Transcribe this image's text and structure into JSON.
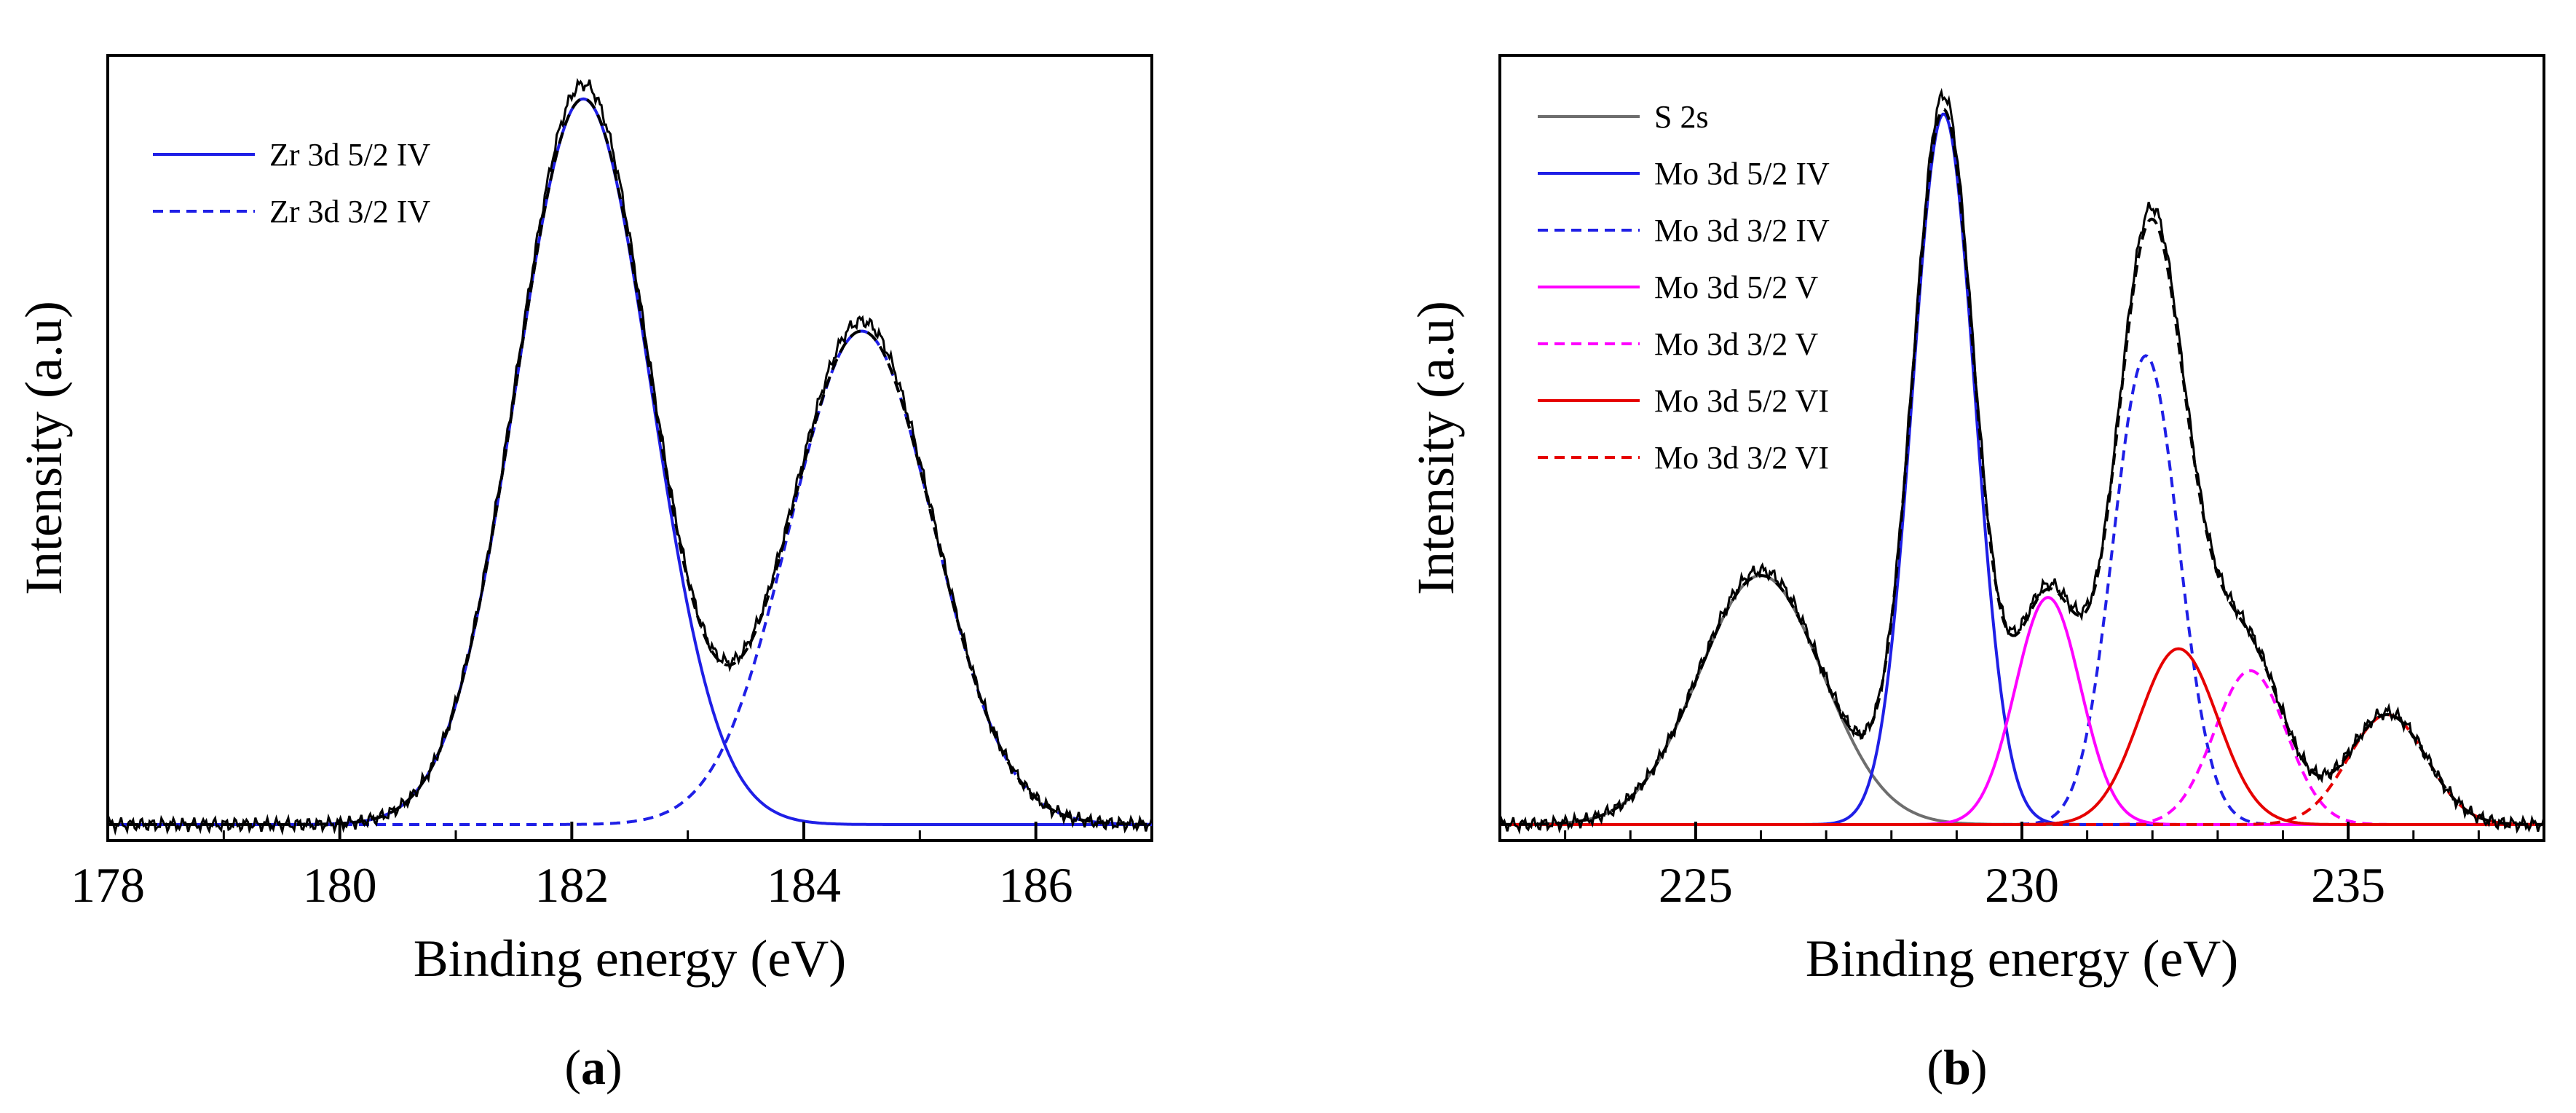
{
  "chart_data": [
    {
      "type": "line",
      "panel_label": "(a)",
      "panel_letter": "a",
      "xlabel": "Binding energy (eV)",
      "ylabel": "Intensity (a.u)",
      "xlim": [
        178,
        187
      ],
      "ylim": [
        0,
        1.06
      ],
      "x_ticks": [
        178,
        180,
        182,
        184,
        186
      ],
      "x_minor_step": 1,
      "legend_position": "top-left",
      "colors": {
        "blue": "#1f1fe6",
        "black": "#000000"
      },
      "components": [
        {
          "name": "Zr 3d 5/2 IV",
          "color": "#1f1fe6",
          "style": "solid",
          "center": 182.1,
          "amplitude": 1.0,
          "sigma": 0.58,
          "show_in_legend": true
        },
        {
          "name": "Zr 3d 3/2 IV",
          "color": "#1f1fe6",
          "style": "dashed",
          "center": 184.5,
          "amplitude": 0.68,
          "sigma": 0.62,
          "show_in_legend": true
        }
      ],
      "envelope": {
        "name": "Fit envelope",
        "color": "#000000",
        "style": "dashed"
      },
      "experimental": {
        "name": "Experimental",
        "color": "#000000",
        "style": "solid"
      },
      "baseline": 0.0
    },
    {
      "type": "line",
      "panel_label": "(b)",
      "panel_letter": "b",
      "xlabel": "Binding energy (eV)",
      "ylabel": "Intensity (a.u)",
      "xlim": [
        222,
        238
      ],
      "ylim": [
        0,
        1.05
      ],
      "x_ticks": [
        225,
        230,
        235
      ],
      "x_minor_step": 1,
      "legend_position": "top-left",
      "colors": {
        "gray": "#6e6e6e",
        "blue": "#1f1fe6",
        "magenta": "#ff00ff",
        "red": "#e60000",
        "black": "#000000"
      },
      "components": [
        {
          "name": "S 2s",
          "color": "#6e6e6e",
          "style": "solid",
          "center": 226.0,
          "amplitude": 0.34,
          "sigma": 0.95,
          "show_in_legend": true
        },
        {
          "name": "Mo 3d 5/2 IV",
          "color": "#1f1fe6",
          "style": "solid",
          "center": 228.8,
          "amplitude": 0.97,
          "sigma": 0.48,
          "show_in_legend": true
        },
        {
          "name": "Mo 3d 3/2 IV",
          "color": "#1f1fe6",
          "style": "dashed",
          "center": 231.9,
          "amplitude": 0.64,
          "sigma": 0.5,
          "show_in_legend": true
        },
        {
          "name": "Mo 3d 5/2 V",
          "color": "#ff00ff",
          "style": "solid",
          "center": 230.4,
          "amplitude": 0.31,
          "sigma": 0.5,
          "show_in_legend": true
        },
        {
          "name": "Mo 3d 3/2 V",
          "color": "#ff00ff",
          "style": "dashed",
          "center": 233.5,
          "amplitude": 0.21,
          "sigma": 0.55,
          "show_in_legend": true
        },
        {
          "name": "Mo 3d 5/2 VI",
          "color": "#e60000",
          "style": "solid",
          "center": 232.4,
          "amplitude": 0.24,
          "sigma": 0.6,
          "show_in_legend": true
        },
        {
          "name": "Mo 3d 3/2 VI",
          "color": "#e60000",
          "style": "dashed",
          "center": 235.6,
          "amplitude": 0.15,
          "sigma": 0.6,
          "show_in_legend": true
        }
      ],
      "envelope": {
        "name": "Fit envelope",
        "color": "#000000",
        "style": "dashed"
      },
      "experimental": {
        "name": "Experimental",
        "color": "#000000",
        "style": "solid"
      },
      "baseline": 0.0
    }
  ]
}
